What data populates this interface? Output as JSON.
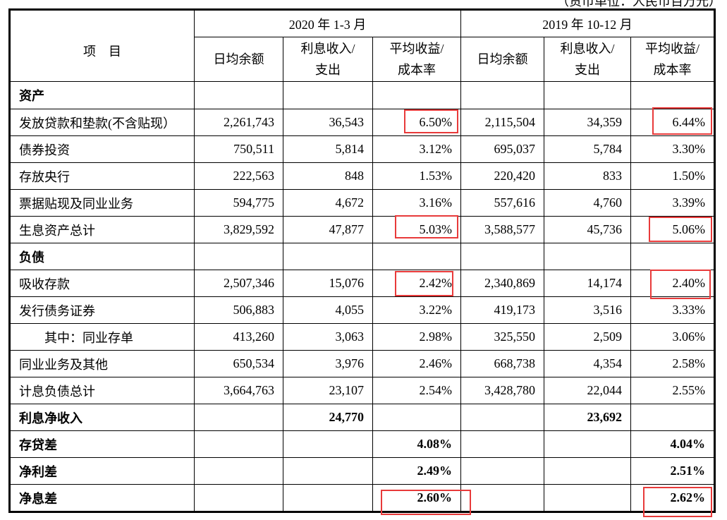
{
  "unit_note": "（货币单位：人民币百万元）",
  "header": {
    "item": "项　目",
    "periods": [
      "2020 年 1-3 月",
      "2019 年 10-12 月"
    ],
    "columns": [
      "日均余额",
      "利息收入/\n支出",
      "平均收益/\n成本率",
      "日均余额",
      "利息收入/\n支出",
      "平均收益/\n成本率"
    ],
    "col_a": [
      "日均余额"
    ],
    "col_b1": "利息收入/",
    "col_b2": "支出",
    "col_c1": "平均收益/",
    "col_c2": "成本率"
  },
  "rows": [
    {
      "label": "资产",
      "bold": true,
      "values": [
        "",
        "",
        "",
        "",
        "",
        ""
      ]
    },
    {
      "label": "发放贷款和垫款(不含贴现）",
      "values": [
        "2,261,743",
        "36,543",
        "6.50%",
        "2,115,504",
        "34,359",
        "6.44%"
      ],
      "highlight": [
        2,
        5
      ]
    },
    {
      "label": "债券投资",
      "values": [
        "750,511",
        "5,814",
        "3.12%",
        "695,037",
        "5,784",
        "3.30%"
      ]
    },
    {
      "label": "存放央行",
      "values": [
        "222,563",
        "848",
        "1.53%",
        "220,420",
        "833",
        "1.50%"
      ]
    },
    {
      "label": "票据贴现及同业业务",
      "values": [
        "594,775",
        "4,672",
        "3.16%",
        "557,616",
        "4,760",
        "3.39%"
      ]
    },
    {
      "label": "生息资产总计",
      "values": [
        "3,829,592",
        "47,877",
        "5.03%",
        "3,588,577",
        "45,736",
        "5.06%"
      ],
      "highlight": [
        2,
        5
      ]
    },
    {
      "label": "负债",
      "bold": true,
      "values": [
        "",
        "",
        "",
        "",
        "",
        ""
      ]
    },
    {
      "label": "吸收存款",
      "values": [
        "2,507,346",
        "15,076",
        "2.42%",
        "2,340,869",
        "14,174",
        "2.40%"
      ],
      "highlight": [
        2,
        5
      ]
    },
    {
      "label": "发行债务证券",
      "values": [
        "506,883",
        "4,055",
        "3.22%",
        "419,173",
        "3,516",
        "3.33%"
      ]
    },
    {
      "label": "其中：同业存单",
      "indent": true,
      "values": [
        "413,260",
        "3,063",
        "2.98%",
        "325,550",
        "2,509",
        "3.06%"
      ]
    },
    {
      "label": "同业业务及其他",
      "values": [
        "650,534",
        "3,976",
        "2.46%",
        "668,738",
        "4,354",
        "2.58%"
      ]
    },
    {
      "label": "计息负债总计",
      "values": [
        "3,664,763",
        "23,107",
        "2.54%",
        "3,428,780",
        "22,044",
        "2.55%"
      ]
    },
    {
      "label": "利息净收入",
      "bold": true,
      "values": [
        "",
        "24,770",
        "",
        "",
        "23,692",
        ""
      ]
    },
    {
      "label": "存贷差",
      "bold": true,
      "values": [
        "",
        "",
        "4.08%",
        "",
        "",
        "4.04%"
      ]
    },
    {
      "label": "净利差",
      "bold": true,
      "values": [
        "",
        "",
        "2.49%",
        "",
        "",
        "2.51%"
      ]
    },
    {
      "label": "净息差",
      "bold": true,
      "values": [
        "",
        "",
        "2.60%",
        "",
        "",
        "2.62%"
      ],
      "highlight": [
        2,
        5
      ]
    }
  ],
  "highlight_color": "#e83a3a"
}
